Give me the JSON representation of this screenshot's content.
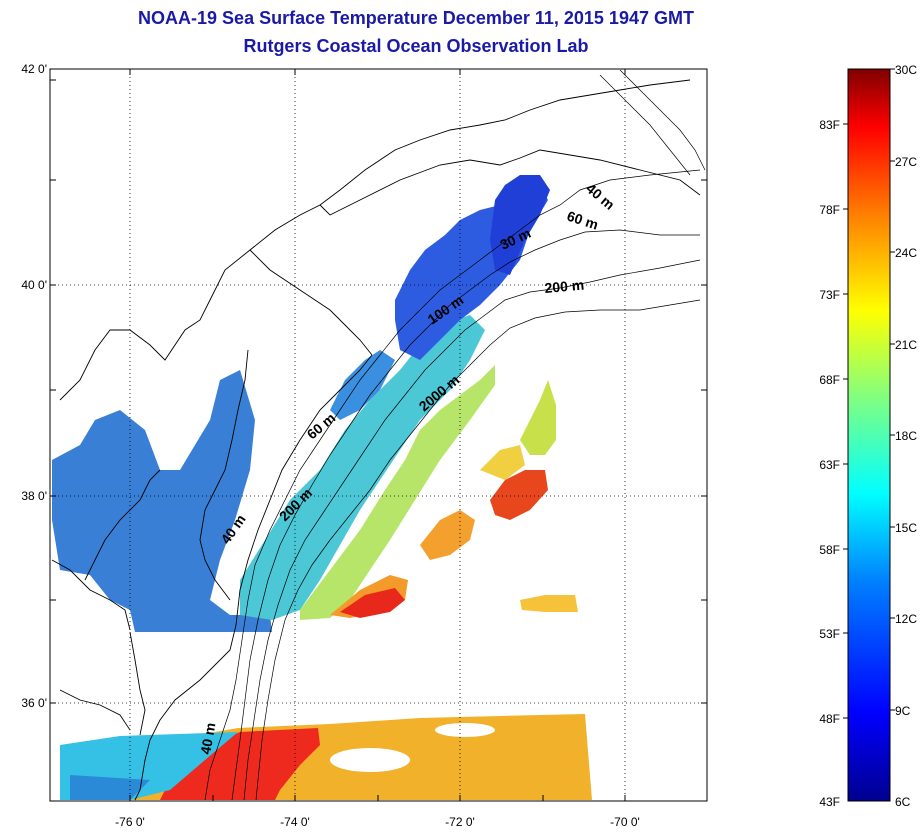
{
  "header": {
    "title": "NOAA-19 Sea Surface Temperature December 11, 2015 1947 GMT",
    "subtitle": "Rutgers Coastal Ocean Observation Lab"
  },
  "map": {
    "lat_labels": [
      "42 0'",
      "40 0'",
      "38 0'",
      "36 0'"
    ],
    "lon_labels": [
      "-76 0'",
      "-74 0'",
      "-72 0'",
      "-70 0'"
    ],
    "lat_values": [
      42,
      40,
      38,
      36
    ],
    "lon_values": [
      -76,
      -74,
      -72,
      -70
    ],
    "lat_range": [
      35.0,
      42.0
    ],
    "lon_range": [
      -77.0,
      -69.0
    ],
    "gridlines": "dotted",
    "isobath_labels": [
      "40 m",
      "60 m",
      "30 m",
      "200 m",
      "100 m",
      "2000 m",
      "60 m",
      "200 m",
      "40 m",
      "40 m"
    ]
  },
  "colorbar": {
    "celsius_labels": [
      "30C",
      "27C",
      "24C",
      "21C",
      "18C",
      "15C",
      "12C",
      "9C",
      "6C"
    ],
    "fahrenheit_labels": [
      "83F",
      "78F",
      "73F",
      "68F",
      "63F",
      "58F",
      "53F",
      "48F",
      "43F"
    ],
    "celsius_range": [
      6,
      30
    ],
    "fahrenheit_range": [
      43,
      86
    ],
    "colors": [
      "#00008f",
      "#0000ff",
      "#0080ff",
      "#00ffff",
      "#80ff80",
      "#ffff00",
      "#ff8000",
      "#ff0000",
      "#800000"
    ]
  }
}
